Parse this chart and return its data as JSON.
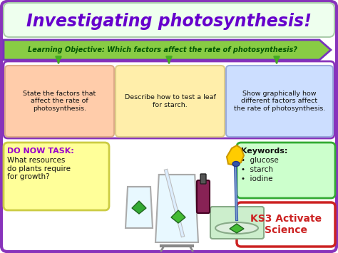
{
  "title": "Investigating photosynthesis!",
  "title_color": "#6600cc",
  "title_bg": "#eeffee",
  "title_border": "#aaccaa",
  "learning_obj": "Learning Objective: Which factors affect the rate of photosynthesis?",
  "lo_color": "#005500",
  "lo_bg": "#88cc44",
  "lo_border": "#7733bb",
  "boxes": [
    {
      "text": "State the factors that\naffect the rate of\nphotosynthesis.",
      "bg": "#ffccaa",
      "border": "#ddaa88"
    },
    {
      "text": "Describe how to test a leaf\nfor starch.",
      "bg": "#ffeeaa",
      "border": "#ddcc88"
    },
    {
      "text": "Show graphically how\ndifferent factors affect\nthe rate of photosynthesis.",
      "bg": "#ccdeff",
      "border": "#99aadd"
    }
  ],
  "do_now_title": "DO NOW TASK:",
  "do_now_title_color": "#9900cc",
  "do_now_text": "What resources\ndo plants require\nfor growth?",
  "do_now_bg": "#ffff99",
  "do_now_border": "#cccc44",
  "keywords_title": "Keywords:",
  "keywords": [
    "glucose",
    "starch",
    "iodine"
  ],
  "keywords_bg": "#ccffcc",
  "keywords_border": "#33aa33",
  "ks3_text": "KS3 Activate\nScience",
  "ks3_bg": "#ffffff",
  "ks3_border": "#cc2222",
  "ks3_text_color": "#cc2222",
  "bg_color": "#ffffff",
  "outer_border": "#8833bb"
}
